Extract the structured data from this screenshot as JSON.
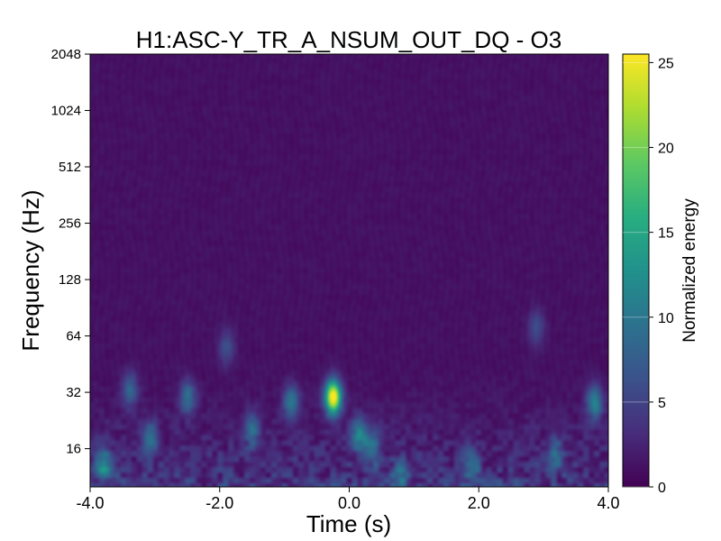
{
  "chart_data": {
    "type": "heatmap",
    "title": "H1:ASC-Y_TR_A_NSUM_OUT_DQ - O3",
    "xlabel": "Time (s)",
    "ylabel": "Frequency (Hz)",
    "xlim": [
      -4.0,
      4.0
    ],
    "ylim": [
      10,
      2048
    ],
    "y_scale": "log2",
    "x_ticks": [
      -4.0,
      -2.0,
      0.0,
      2.0,
      4.0
    ],
    "x_tick_labels": [
      "-4.0",
      "-2.0",
      "0.0",
      "2.0",
      "4.0"
    ],
    "y_ticks": [
      16,
      32,
      64,
      128,
      256,
      512,
      1024,
      2048
    ],
    "y_tick_labels": [
      "16",
      "32",
      "64",
      "128",
      "256",
      "512",
      "1024",
      "2048"
    ],
    "colorbar": {
      "label": "Normalized energy",
      "colormap": "viridis",
      "range": [
        0,
        25.5
      ],
      "ticks": [
        0,
        5,
        10,
        15,
        20,
        25
      ],
      "tick_labels": [
        "0",
        "5",
        "10",
        "15",
        "20",
        "25"
      ]
    },
    "background_level": 0.6,
    "features": [
      {
        "t": -0.25,
        "f": 30,
        "energy": 25.5
      },
      {
        "t": 0.15,
        "f": 19,
        "energy": 9
      },
      {
        "t": 0.35,
        "f": 16,
        "energy": 8
      },
      {
        "t": -0.9,
        "f": 28,
        "energy": 9
      },
      {
        "t": -1.5,
        "f": 20,
        "energy": 7
      },
      {
        "t": -2.5,
        "f": 30,
        "energy": 8
      },
      {
        "t": -3.1,
        "f": 18,
        "energy": 8
      },
      {
        "t": -3.8,
        "f": 13,
        "energy": 9
      },
      {
        "t": -3.4,
        "f": 33,
        "energy": 7
      },
      {
        "t": -1.9,
        "f": 55,
        "energy": 5
      },
      {
        "t": 0.8,
        "f": 11,
        "energy": 7
      },
      {
        "t": 1.9,
        "f": 13,
        "energy": 6
      },
      {
        "t": 2.9,
        "f": 70,
        "energy": 5
      },
      {
        "t": 3.8,
        "f": 28,
        "energy": 10
      },
      {
        "t": 3.2,
        "f": 15,
        "energy": 6
      }
    ],
    "grid": false
  }
}
